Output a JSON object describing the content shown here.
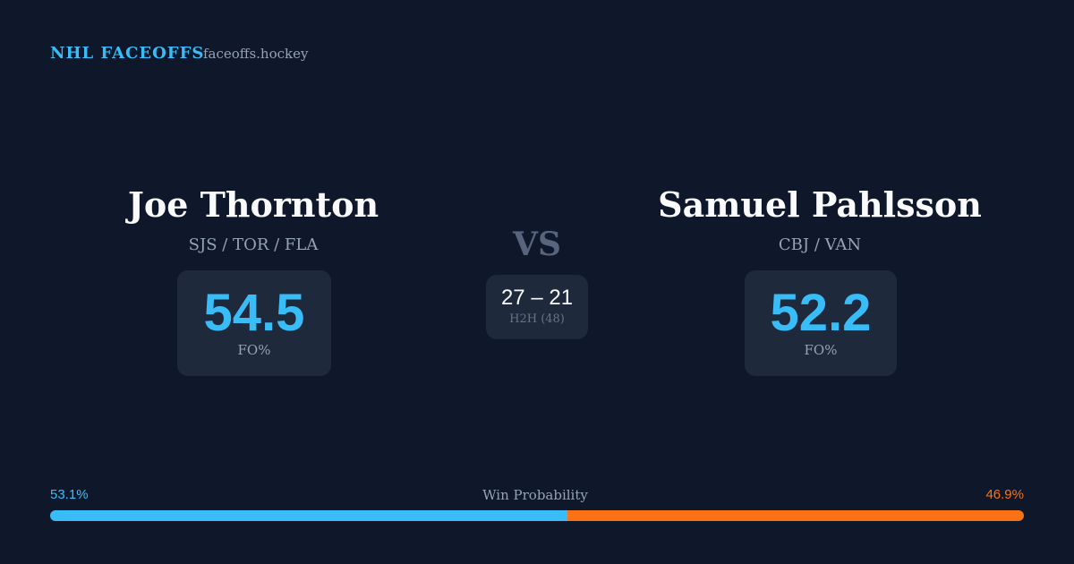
{
  "header": {
    "title": "NHL FACEOFFS",
    "site": "faceoffs.hockey"
  },
  "players": [
    {
      "name": "Joe Thornton",
      "teams": "SJS / TOR / FLA",
      "fo": 54.5,
      "fo_label": "FO%"
    },
    {
      "name": "Samuel Pahlsson",
      "teams": "CBJ / VAN",
      "fo": 52.2,
      "fo_label": "FO%"
    }
  ],
  "versus": "VS",
  "h2h": {
    "score": "27 – 21",
    "label": "H2H (48)"
  },
  "win_probability": {
    "label": "Win Probability",
    "left": {
      "value": 53.1,
      "label": "53.1%",
      "color": "#38bdf8"
    },
    "right": {
      "value": 46.9,
      "label": "46.9%",
      "color": "#f97316"
    }
  }
}
